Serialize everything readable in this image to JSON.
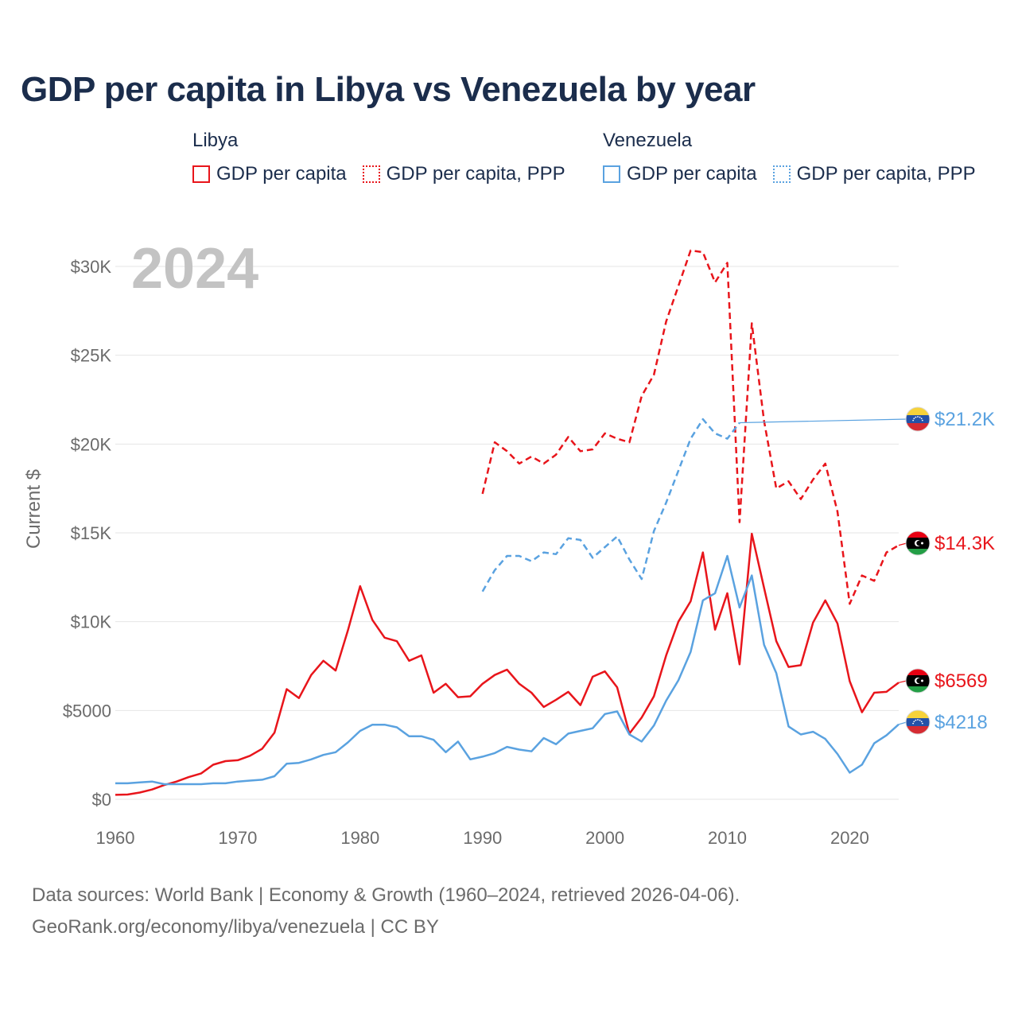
{
  "title": "GDP per capita in Libya vs Venezuela by year",
  "legend": {
    "libya": {
      "title": "Libya",
      "items": [
        "GDP per capita",
        "GDP per capita, PPP"
      ],
      "color": "#e8151b"
    },
    "venezuela": {
      "title": "Venezuela",
      "items": [
        "GDP per capita",
        "GDP per capita, PPP"
      ],
      "color": "#5aa2e0"
    }
  },
  "footer": {
    "line1": "Data sources: World Bank | Economy & Growth (1960–2024, retrieved 2026-04-06).",
    "line2": "GeoRank.org/economy/libya/venezuela | CC BY"
  },
  "chart_data": {
    "type": "line",
    "year_label": "2024",
    "ylabel": "Current $",
    "xlim": [
      1960,
      2024
    ],
    "ylim": [
      0,
      32000
    ],
    "x_ticks": [
      1960,
      1970,
      1980,
      1990,
      2000,
      2010,
      2020
    ],
    "y_ticks": [
      {
        "value": 0,
        "label": "$0"
      },
      {
        "value": 5000,
        "label": "$5000"
      },
      {
        "value": 10000,
        "label": "$10K"
      },
      {
        "value": 15000,
        "label": "$15K"
      },
      {
        "value": 20000,
        "label": "$20K"
      },
      {
        "value": 25000,
        "label": "$25K"
      },
      {
        "value": 30000,
        "label": "$30K"
      }
    ],
    "series": [
      {
        "name": "Libya GDP per capita",
        "country": "libya",
        "dashed": false,
        "color": "#e8151b",
        "start": 1960,
        "values": [
          250,
          270,
          380,
          550,
          800,
          1000,
          1250,
          1450,
          1950,
          2150,
          2200,
          2450,
          2850,
          3750,
          6200,
          5700,
          7000,
          7800,
          7250,
          9500,
          12000,
          10100,
          9100,
          8900,
          7800,
          8100,
          6000,
          6500,
          5750,
          5800,
          6500,
          7000,
          7300,
          6500,
          6000,
          5200,
          5600,
          6050,
          5300,
          6900,
          7200,
          6300,
          3700,
          4600,
          5800,
          8100,
          10000,
          11150,
          13900,
          9550,
          11600,
          7600,
          14950,
          11900,
          8900,
          7450,
          7550,
          9950,
          11200,
          9900,
          6650,
          4900,
          6000,
          6050,
          6569
        ],
        "end_label": "$6569"
      },
      {
        "name": "Libya GDP per capita, PPP",
        "country": "libya",
        "dashed": true,
        "color": "#e8151b",
        "start": 1990,
        "values": [
          17200,
          20100,
          19600,
          18900,
          19300,
          18900,
          19400,
          20400,
          19600,
          19700,
          20600,
          20300,
          20100,
          22700,
          23900,
          26900,
          28900,
          30900,
          30800,
          29100,
          30200,
          15600,
          26800,
          21300,
          17500,
          17900,
          16900,
          18000,
          18900,
          16200,
          11000,
          12600,
          12300,
          13900,
          14300
        ],
        "end_label": "$14.3K"
      },
      {
        "name": "Venezuela GDP per capita",
        "country": "venezuela",
        "dashed": false,
        "color": "#5aa2e0",
        "start": 1960,
        "values": [
          900,
          900,
          950,
          1000,
          850,
          850,
          850,
          850,
          900,
          900,
          1000,
          1050,
          1100,
          1300,
          2000,
          2050,
          2250,
          2500,
          2650,
          3200,
          3850,
          4200,
          4200,
          4050,
          3550,
          3550,
          3350,
          2650,
          3250,
          2250,
          2400,
          2600,
          2950,
          2800,
          2700,
          3450,
          3100,
          3700,
          3850,
          4000,
          4800,
          4950,
          3650,
          3250,
          4150,
          5550,
          6700,
          8300,
          11200,
          11600,
          13700,
          10800,
          12600,
          8700,
          7100,
          4100,
          3650,
          3800,
          3400,
          2550,
          1500,
          1950,
          3150,
          3600,
          4218
        ],
        "end_label": "$4218"
      },
      {
        "name": "Venezuela GDP per capita, PPP",
        "country": "venezuela",
        "dashed": true,
        "color": "#5aa2e0",
        "start": 1990,
        "values": [
          11700,
          12900,
          13700,
          13700,
          13400,
          13900,
          13800,
          14700,
          14600,
          13600,
          14200,
          14800,
          13500,
          12400,
          15100,
          16700,
          18500,
          20300,
          21400,
          20600,
          20300,
          21200
        ],
        "end_label": "$21.2K"
      }
    ]
  }
}
